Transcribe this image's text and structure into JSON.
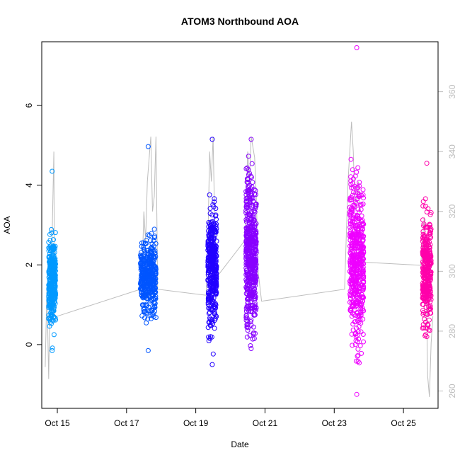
{
  "chart_data": {
    "type": "scatter",
    "title": "ATOM3 Northbound AOA",
    "xlabel": "Date",
    "ylabel": "AOA",
    "y2label": "",
    "xlim": [
      14.55,
      26.0
    ],
    "ylim": [
      -1.6,
      7.6
    ],
    "y2lim": [
      254.2,
      376.7
    ],
    "x_ticks": [
      {
        "value": 15,
        "label": "Oct 15"
      },
      {
        "value": 17,
        "label": "Oct 17"
      },
      {
        "value": 19,
        "label": "Oct 19"
      },
      {
        "value": 21,
        "label": "Oct 21"
      },
      {
        "value": 23,
        "label": "Oct 23"
      },
      {
        "value": 25,
        "label": "Oct 25"
      }
    ],
    "y_ticks": [
      0,
      2,
      4,
      6
    ],
    "y2_ticks": [
      260,
      280,
      300,
      320,
      340,
      360
    ],
    "colors": {
      "oct15": "#0099ff",
      "oct17": "#0055ff",
      "oct19": "#2200ff",
      "oct20": "#8800ff",
      "oct23": "#ee00ff",
      "oct25": "#ff00aa",
      "line": "#bdbdbd"
    },
    "series": [
      {
        "color": "#0099ff",
        "x_range": [
          14.75,
          14.95
        ],
        "y_min": -0.15,
        "y_max": 4.35,
        "y_center": 1.6,
        "y_spread": 0.55,
        "count": 340
      },
      {
        "color": "#0055ff",
        "x_range": [
          17.4,
          17.85
        ],
        "y_min": -0.15,
        "y_max": 4.97,
        "y_center": 1.7,
        "y_spread": 0.45,
        "count": 420
      },
      {
        "color": "#2200ff",
        "x_range": [
          19.35,
          19.6
        ],
        "y_min": -0.5,
        "y_max": 5.15,
        "y_center": 2.0,
        "y_spread": 0.7,
        "count": 420
      },
      {
        "color": "#8800ff",
        "x_range": [
          20.45,
          20.75
        ],
        "y_min": -0.1,
        "y_max": 5.15,
        "y_center": 2.3,
        "y_spread": 0.95,
        "count": 520
      },
      {
        "color": "#ee00ff",
        "x_range": [
          23.45,
          23.85
        ],
        "y_min": -1.25,
        "y_max": 7.45,
        "y_center": 2.1,
        "y_spread": 0.95,
        "count": 520
      },
      {
        "color": "#ff00aa",
        "x_range": [
          25.55,
          25.8
        ],
        "y_min": 0.2,
        "y_max": 4.55,
        "y_center": 1.9,
        "y_spread": 0.7,
        "count": 340
      }
    ],
    "secondary_line": {
      "note": "CO2-like trace on right axis",
      "points": [
        [
          14.65,
          268
        ],
        [
          14.7,
          295
        ],
        [
          14.75,
          264
        ],
        [
          14.8,
          300
        ],
        [
          14.85,
          312
        ],
        [
          14.9,
          340
        ],
        [
          14.92,
          285
        ],
        [
          15.0,
          285
        ],
        [
          17.4,
          294
        ],
        [
          17.45,
          300
        ],
        [
          17.5,
          320
        ],
        [
          17.55,
          310
        ],
        [
          17.6,
          330
        ],
        [
          17.7,
          345
        ],
        [
          17.75,
          320
        ],
        [
          17.8,
          325
        ],
        [
          17.85,
          345
        ],
        [
          17.9,
          294
        ],
        [
          19.3,
          292
        ],
        [
          19.35,
          310
        ],
        [
          19.4,
          340
        ],
        [
          19.45,
          330
        ],
        [
          19.5,
          345
        ],
        [
          19.55,
          315
        ],
        [
          19.6,
          298
        ],
        [
          20.4,
          310
        ],
        [
          20.45,
          320
        ],
        [
          20.5,
          340
        ],
        [
          20.55,
          330
        ],
        [
          20.6,
          345
        ],
        [
          20.7,
          338
        ],
        [
          20.75,
          325
        ],
        [
          20.8,
          300
        ],
        [
          20.9,
          290
        ],
        [
          23.3,
          294
        ],
        [
          23.4,
          330
        ],
        [
          23.5,
          350
        ],
        [
          23.55,
          340
        ],
        [
          23.6,
          320
        ],
        [
          23.7,
          330
        ],
        [
          23.75,
          315
        ],
        [
          23.8,
          305
        ],
        [
          23.9,
          303
        ],
        [
          25.5,
          302
        ],
        [
          25.6,
          318
        ],
        [
          25.65,
          300
        ],
        [
          25.7,
          265
        ],
        [
          25.75,
          258
        ],
        [
          25.8,
          276
        ],
        [
          25.85,
          285
        ]
      ]
    }
  }
}
